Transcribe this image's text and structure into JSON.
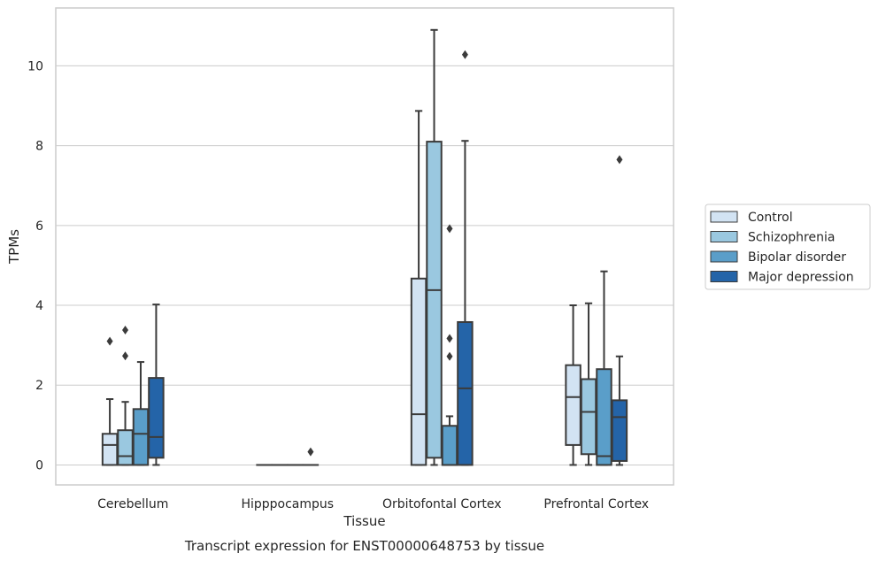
{
  "chart_data": {
    "type": "box",
    "caption": "Transcript expression for ENST00000648753 by tissue",
    "xlabel": "Tissue",
    "ylabel": "TPMs",
    "ylim": [
      -0.5,
      11.45
    ],
    "yticks": [
      0,
      2,
      4,
      6,
      8,
      10
    ],
    "grid": "horizontal",
    "legend_position": "right",
    "categories": [
      "Cerebellum",
      "Hipppocampus",
      "Orbitofontal Cortex",
      "Prefrontal Cortex"
    ],
    "series": [
      {
        "name": "Control",
        "color": "#d2e3f3",
        "boxes": [
          {
            "whislo": 0,
            "q1": 0,
            "med": 0.5,
            "q3": 0.78,
            "whishi": 1.65,
            "fliers": [
              3.1
            ]
          },
          {
            "whislo": 0,
            "q1": 0,
            "med": 0,
            "q3": 0,
            "whishi": 0,
            "fliers": []
          },
          {
            "whislo": 0,
            "q1": 0,
            "med": 1.27,
            "q3": 4.67,
            "whishi": 8.87,
            "fliers": []
          },
          {
            "whislo": 0,
            "q1": 0.5,
            "med": 1.7,
            "q3": 2.5,
            "whishi": 4.0,
            "fliers": []
          }
        ]
      },
      {
        "name": "Schizophrenia",
        "color": "#9ac8e0",
        "boxes": [
          {
            "whislo": 0,
            "q1": 0,
            "med": 0.22,
            "q3": 0.87,
            "whishi": 1.58,
            "fliers": [
              2.73,
              3.38
            ]
          },
          {
            "whislo": 0,
            "q1": 0,
            "med": 0,
            "q3": 0,
            "whishi": 0,
            "fliers": []
          },
          {
            "whislo": 0,
            "q1": 0.18,
            "med": 4.38,
            "q3": 8.1,
            "whishi": 10.9,
            "fliers": []
          },
          {
            "whislo": 0,
            "q1": 0.27,
            "med": 1.33,
            "q3": 2.15,
            "whishi": 4.05,
            "fliers": []
          }
        ]
      },
      {
        "name": "Bipolar disorder",
        "color": "#5a9ec9",
        "boxes": [
          {
            "whislo": 0,
            "q1": 0,
            "med": 0.78,
            "q3": 1.4,
            "whishi": 2.58,
            "fliers": []
          },
          {
            "whislo": 0,
            "q1": 0,
            "med": 0,
            "q3": 0,
            "whishi": 0,
            "fliers": []
          },
          {
            "whislo": 0,
            "q1": 0,
            "med": 0,
            "q3": 0.98,
            "whishi": 1.22,
            "fliers": [
              2.72,
              3.17,
              5.92
            ]
          },
          {
            "whislo": 0,
            "q1": 0,
            "med": 0.22,
            "q3": 2.4,
            "whishi": 4.85,
            "fliers": []
          }
        ]
      },
      {
        "name": "Major depression",
        "color": "#2464a8",
        "boxes": [
          {
            "whislo": 0,
            "q1": 0.18,
            "med": 0.7,
            "q3": 2.18,
            "whishi": 4.02,
            "fliers": []
          },
          {
            "whislo": 0,
            "q1": 0,
            "med": 0,
            "q3": 0,
            "whishi": 0,
            "fliers": [
              0.33
            ]
          },
          {
            "whislo": 0,
            "q1": 0,
            "med": 1.92,
            "q3": 3.58,
            "whishi": 8.12,
            "fliers": [
              10.28
            ]
          },
          {
            "whislo": 0,
            "q1": 0.1,
            "med": 1.2,
            "q3": 1.62,
            "whishi": 2.72,
            "fliers": [
              7.65
            ]
          }
        ]
      }
    ]
  }
}
